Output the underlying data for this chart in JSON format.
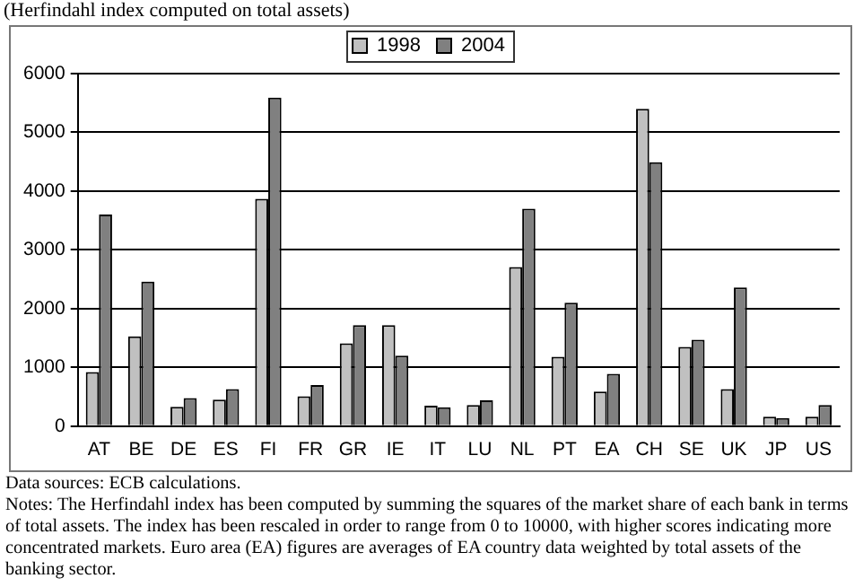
{
  "chart_data": {
    "type": "bar",
    "title": "(Herfindahl index computed on total assets)",
    "categories": [
      "AT",
      "BE",
      "DE",
      "ES",
      "FI",
      "FR",
      "GR",
      "IE",
      "IT",
      "LU",
      "NL",
      "PT",
      "EA",
      "CH",
      "SE",
      "UK",
      "JP",
      "US"
    ],
    "series": [
      {
        "name": "1998",
        "color": "#c0c0c0",
        "values": [
          920,
          1530,
          330,
          450,
          3870,
          510,
          1410,
          1720,
          350,
          360,
          2710,
          1180,
          590,
          5400,
          1350,
          630,
          160,
          160
        ]
      },
      {
        "name": "2004",
        "color": "#808080",
        "values": [
          3600,
          2460,
          480,
          630,
          5590,
          700,
          1720,
          1200,
          320,
          440,
          3700,
          2100,
          890,
          4490,
          1470,
          2360,
          140,
          360
        ]
      }
    ],
    "ylim": [
      0,
      6000
    ],
    "yticks": [
      0,
      1000,
      2000,
      3000,
      4000,
      5000,
      6000
    ],
    "grid": "y",
    "legend": "top",
    "annotations": [
      "Data sources: ECB calculations.",
      "Notes: The Herfindahl index has been computed by summing the squares of the market share of each bank in terms of total assets. The index has been rescaled in order to range from 0 to 10000, with higher scores indicating more concentrated markets. Euro area (EA) figures are averages of EA country data weighted by total assets of the banking sector."
    ]
  }
}
